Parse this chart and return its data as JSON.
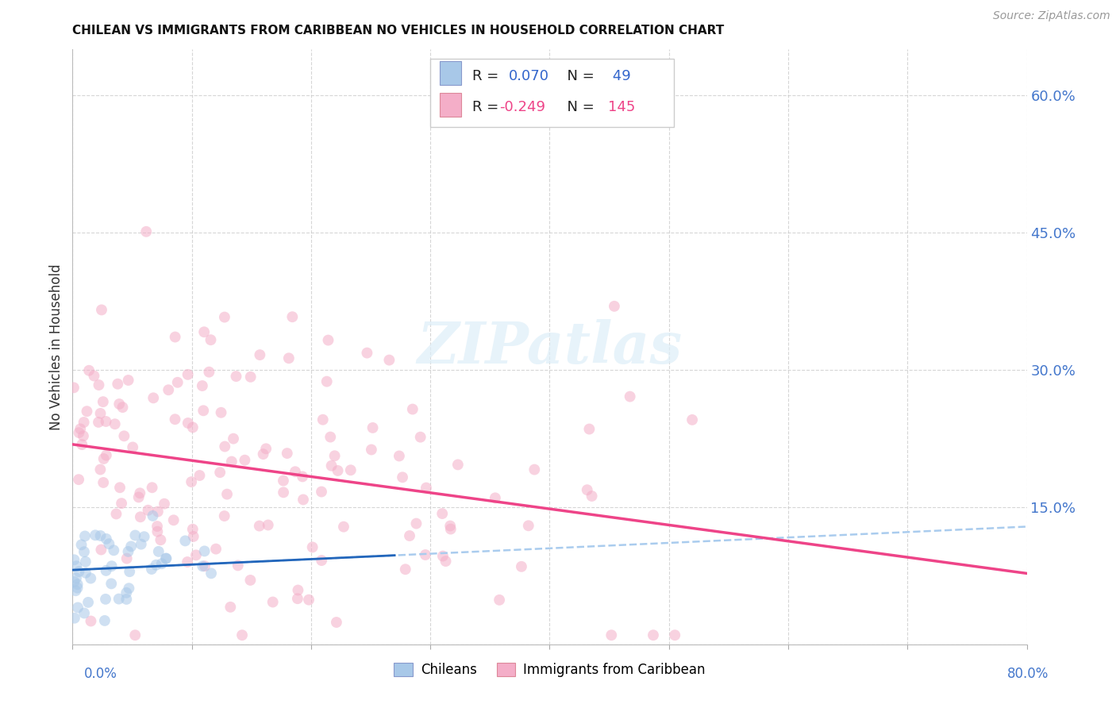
{
  "title": "CHILEAN VS IMMIGRANTS FROM CARIBBEAN NO VEHICLES IN HOUSEHOLD CORRELATION CHART",
  "source": "Source: ZipAtlas.com",
  "ylabel": "No Vehicles in Household",
  "xlim": [
    0.0,
    0.8
  ],
  "ylim": [
    0.0,
    0.65
  ],
  "ytick_vals": [
    0.0,
    0.15,
    0.3,
    0.45,
    0.6
  ],
  "ytick_labels": [
    "",
    "15.0%",
    "30.0%",
    "45.0%",
    "60.0%"
  ],
  "background_color": "#ffffff",
  "grid_color": "#cccccc",
  "watermark_text": "ZIPatlas",
  "legend_r_chilean": "0.070",
  "legend_n_chilean": "49",
  "legend_r_carib": "-0.249",
  "legend_n_carib": "145",
  "chilean_color": "#a8c8e8",
  "carib_color": "#f4aec8",
  "chilean_line_color": "#2266bb",
  "carib_line_color": "#ee4488",
  "chilean_dash_color": "#aaccee",
  "marker_size": 100,
  "marker_alpha": 0.55
}
